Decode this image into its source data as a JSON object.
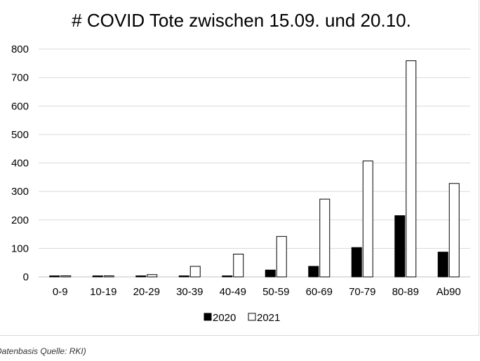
{
  "chart_data": {
    "type": "bar",
    "title": "# COVID Tote zwischen 15.09. und 20.10.",
    "categories": [
      "0-9",
      "10-19",
      "20-29",
      "30-39",
      "40-49",
      "50-59",
      "60-69",
      "70-79",
      "80-89",
      "Ab90"
    ],
    "series": [
      {
        "name": "2020",
        "color": "#000000",
        "values": [
          1,
          1,
          2,
          2,
          2,
          24,
          37,
          103,
          215,
          87
        ]
      },
      {
        "name": "2021",
        "color": "#ffffff",
        "values": [
          1,
          1,
          8,
          37,
          80,
          142,
          273,
          407,
          759,
          328
        ]
      }
    ],
    "ylim": [
      0,
      800
    ],
    "yticks": [
      0,
      100,
      200,
      300,
      400,
      500,
      600,
      700,
      800
    ],
    "grid": true,
    "legend_position": "bottom"
  },
  "source_note": "Datenbasis Quelle: RKI)"
}
